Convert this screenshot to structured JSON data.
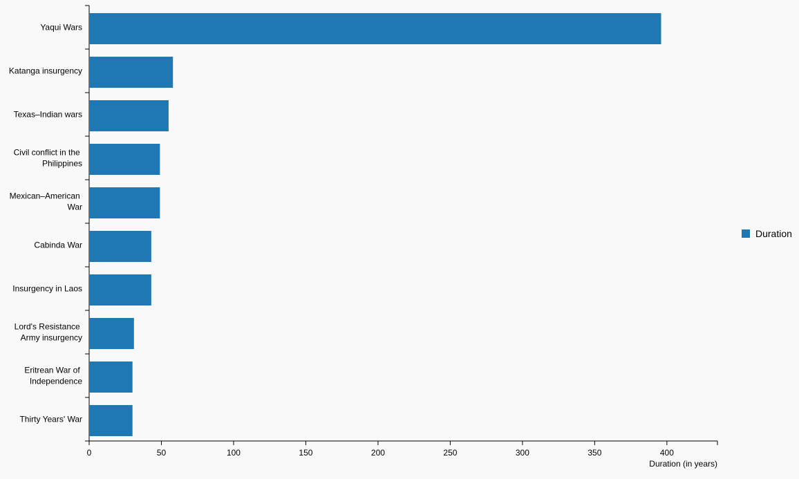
{
  "chart_data": {
    "type": "bar",
    "orientation": "horizontal",
    "categories": [
      "Yaqui Wars",
      "Katanga insurgency",
      "Texas–Indian wars",
      "Civil conflict in the Philippines",
      "Mexican–American War",
      "Cabinda War",
      "Insurgency in Laos",
      "Lord's Resistance Army insurgency",
      "Eritrean War of Independence",
      "Thirty Years' War"
    ],
    "series": [
      {
        "name": "Duration",
        "color": "#1f77b4",
        "values": [
          396,
          58,
          55,
          49,
          49,
          43,
          43,
          31,
          30,
          30
        ]
      }
    ],
    "x_label": "Duration (in years)",
    "xlim": [
      0,
      435
    ],
    "xticks": [
      0,
      50,
      100,
      150,
      200,
      250,
      300,
      350,
      400
    ],
    "legend": "right"
  }
}
